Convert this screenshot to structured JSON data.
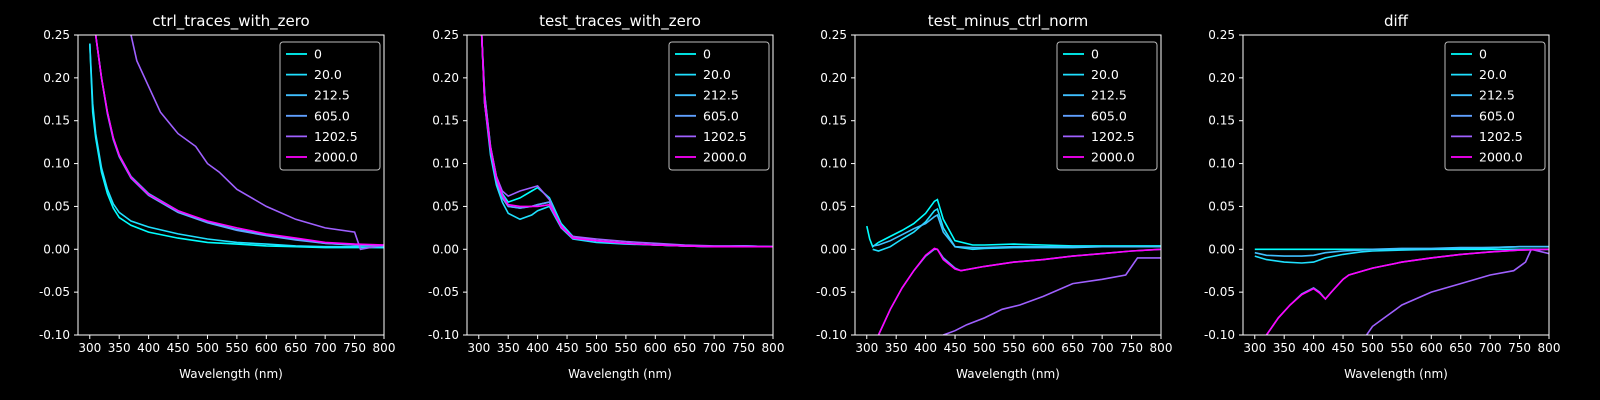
{
  "chart_data": [
    {
      "type": "line",
      "title": "ctrl_traces_with_zero",
      "xlabel": "Wavelength (nm)",
      "ylabel": "",
      "xlim": [
        280,
        800
      ],
      "ylim": [
        -0.1,
        0.25
      ],
      "xticks": [
        300,
        350,
        400,
        450,
        500,
        550,
        600,
        650,
        700,
        750,
        800
      ],
      "yticks": [
        -0.1,
        -0.05,
        0.0,
        0.05,
        0.1,
        0.15,
        0.2,
        0.25
      ],
      "grid": false,
      "legend_position": "top-right",
      "series": [
        {
          "name": "0",
          "color": "#00ffff",
          "x": [
            300,
            305,
            310,
            320,
            330,
            340,
            350,
            370,
            400,
            450,
            500,
            550,
            600,
            650,
            700,
            750,
            800
          ],
          "y": [
            0.24,
            0.16,
            0.13,
            0.09,
            0.065,
            0.048,
            0.037,
            0.028,
            0.02,
            0.013,
            0.008,
            0.006,
            0.004,
            0.003,
            0.002,
            0.002,
            0.002
          ]
        },
        {
          "name": "20.0",
          "color": "#1fe0ff",
          "x": [
            300,
            305,
            310,
            320,
            330,
            340,
            350,
            370,
            400,
            450,
            500,
            550,
            600,
            650,
            700,
            750,
            800
          ],
          "y": [
            0.24,
            0.17,
            0.135,
            0.095,
            0.07,
            0.053,
            0.043,
            0.033,
            0.026,
            0.018,
            0.012,
            0.008,
            0.006,
            0.004,
            0.003,
            0.003,
            0.002
          ]
        },
        {
          "name": "212.5",
          "color": "#40c0ff",
          "x": [
            310,
            320,
            330,
            340,
            350,
            370,
            400,
            450,
            500,
            550,
            600,
            650,
            700,
            750,
            800
          ],
          "y": [
            0.25,
            0.2,
            0.16,
            0.13,
            0.11,
            0.085,
            0.065,
            0.045,
            0.032,
            0.023,
            0.017,
            0.012,
            0.007,
            0.005,
            0.004
          ]
        },
        {
          "name": "605.0",
          "color": "#60a0ff",
          "x": [
            310,
            320,
            330,
            340,
            350,
            370,
            400,
            450,
            500,
            550,
            600,
            650,
            700,
            750,
            800
          ],
          "y": [
            0.25,
            0.2,
            0.158,
            0.128,
            0.108,
            0.083,
            0.063,
            0.043,
            0.031,
            0.022,
            0.016,
            0.011,
            0.007,
            0.005,
            0.004
          ]
        },
        {
          "name": "1202.5",
          "color": "#9f60ff",
          "x": [
            370,
            380,
            400,
            420,
            450,
            480,
            500,
            520,
            550,
            600,
            650,
            700,
            750,
            760,
            800
          ],
          "y": [
            0.25,
            0.22,
            0.19,
            0.16,
            0.135,
            0.12,
            0.1,
            0.09,
            0.07,
            0.05,
            0.035,
            0.025,
            0.02,
            0.0,
            0.005
          ]
        },
        {
          "name": "2000.0",
          "color": "#ff00ff",
          "x": [
            310,
            320,
            330,
            340,
            350,
            370,
            400,
            450,
            500,
            550,
            600,
            650,
            700,
            750,
            800
          ],
          "y": [
            0.25,
            0.2,
            0.16,
            0.13,
            0.11,
            0.084,
            0.064,
            0.045,
            0.033,
            0.025,
            0.018,
            0.013,
            0.008,
            0.006,
            0.005
          ]
        }
      ]
    },
    {
      "type": "line",
      "title": "test_traces_with_zero",
      "xlabel": "Wavelength (nm)",
      "ylabel": "",
      "xlim": [
        280,
        800
      ],
      "ylim": [
        -0.1,
        0.25
      ],
      "xticks": [
        300,
        350,
        400,
        450,
        500,
        550,
        600,
        650,
        700,
        750,
        800
      ],
      "yticks": [
        -0.1,
        -0.05,
        0.0,
        0.05,
        0.1,
        0.15,
        0.2,
        0.25
      ],
      "grid": false,
      "legend_position": "top-right",
      "series": [
        {
          "name": "0",
          "color": "#00ffff",
          "x": [
            305,
            310,
            320,
            330,
            340,
            350,
            370,
            390,
            400,
            420,
            440,
            460,
            500,
            550,
            600,
            650,
            700,
            750,
            800
          ],
          "y": [
            0.25,
            0.18,
            0.12,
            0.085,
            0.065,
            0.055,
            0.06,
            0.068,
            0.072,
            0.06,
            0.03,
            0.015,
            0.01,
            0.007,
            0.005,
            0.004,
            0.003,
            0.004,
            0.003
          ]
        },
        {
          "name": "20.0",
          "color": "#1fe0ff",
          "x": [
            305,
            310,
            320,
            330,
            340,
            350,
            370,
            390,
            400,
            420,
            440,
            460,
            500,
            550,
            600,
            650,
            700,
            750,
            800
          ],
          "y": [
            0.25,
            0.17,
            0.11,
            0.075,
            0.055,
            0.042,
            0.035,
            0.04,
            0.045,
            0.05,
            0.025,
            0.012,
            0.008,
            0.006,
            0.005,
            0.004,
            0.003,
            0.004,
            0.003
          ]
        },
        {
          "name": "212.5",
          "color": "#40c0ff",
          "x": [
            305,
            310,
            320,
            330,
            340,
            350,
            370,
            390,
            400,
            420,
            440,
            460,
            500,
            550,
            600,
            650,
            700,
            750,
            800
          ],
          "y": [
            0.25,
            0.17,
            0.115,
            0.08,
            0.06,
            0.05,
            0.048,
            0.05,
            0.052,
            0.055,
            0.028,
            0.014,
            0.01,
            0.007,
            0.005,
            0.004,
            0.003,
            0.003,
            0.003
          ]
        },
        {
          "name": "605.0",
          "color": "#60a0ff",
          "x": [
            305,
            310,
            320,
            330,
            340,
            350,
            370,
            390,
            400,
            420,
            440,
            460,
            500,
            550,
            600,
            650,
            700,
            750,
            800
          ],
          "y": [
            0.25,
            0.17,
            0.115,
            0.08,
            0.06,
            0.05,
            0.048,
            0.05,
            0.052,
            0.055,
            0.028,
            0.014,
            0.01,
            0.007,
            0.005,
            0.004,
            0.003,
            0.003,
            0.003
          ]
        },
        {
          "name": "1202.5",
          "color": "#9f60ff",
          "x": [
            305,
            310,
            320,
            330,
            340,
            350,
            370,
            390,
            400,
            420,
            440,
            460,
            500,
            550,
            600,
            650,
            700,
            750,
            800
          ],
          "y": [
            0.25,
            0.18,
            0.12,
            0.085,
            0.068,
            0.062,
            0.068,
            0.072,
            0.074,
            0.058,
            0.025,
            0.015,
            0.012,
            0.009,
            0.007,
            0.005,
            0.004,
            0.004,
            0.003
          ]
        },
        {
          "name": "2000.0",
          "color": "#ff00ff",
          "x": [
            305,
            310,
            320,
            330,
            340,
            350,
            370,
            390,
            400,
            420,
            440,
            460,
            500,
            550,
            600,
            650,
            700,
            750,
            800
          ],
          "y": [
            0.25,
            0.17,
            0.118,
            0.083,
            0.063,
            0.052,
            0.05,
            0.05,
            0.05,
            0.052,
            0.027,
            0.013,
            0.01,
            0.007,
            0.005,
            0.004,
            0.003,
            0.003,
            0.003
          ]
        }
      ]
    },
    {
      "type": "line",
      "title": "test_minus_ctrl_norm",
      "xlabel": "Wavelength (nm)",
      "ylabel": "",
      "xlim": [
        280,
        800
      ],
      "ylim": [
        -0.1,
        0.25
      ],
      "xticks": [
        300,
        350,
        400,
        450,
        500,
        550,
        600,
        650,
        700,
        750,
        800
      ],
      "yticks": [
        -0.1,
        -0.05,
        0.0,
        0.05,
        0.1,
        0.15,
        0.2,
        0.25
      ],
      "grid": false,
      "legend_position": "top-right",
      "series": [
        {
          "name": "0",
          "color": "#00ffff",
          "x": [
            300,
            305,
            310,
            320,
            340,
            360,
            380,
            400,
            415,
            420,
            430,
            450,
            480,
            500,
            550,
            600,
            650,
            700,
            750,
            800
          ],
          "y": [
            0.027,
            0.012,
            0.003,
            0.008,
            0.015,
            0.022,
            0.03,
            0.042,
            0.056,
            0.058,
            0.035,
            0.01,
            0.005,
            0.005,
            0.006,
            0.005,
            0.004,
            0.004,
            0.004,
            0.004
          ]
        },
        {
          "name": "20.0",
          "color": "#1fe0ff",
          "x": [
            310,
            320,
            340,
            360,
            380,
            400,
            415,
            420,
            430,
            450,
            480,
            500,
            550,
            600,
            650,
            700,
            750,
            800
          ],
          "y": [
            0.0,
            -0.002,
            0.003,
            0.012,
            0.02,
            0.032,
            0.045,
            0.047,
            0.025,
            0.003,
            0.0,
            0.001,
            0.002,
            0.002,
            0.002,
            0.003,
            0.003,
            0.003
          ]
        },
        {
          "name": "212.5",
          "color": "#40c0ff",
          "x": [
            310,
            320,
            340,
            360,
            380,
            400,
            415,
            420,
            430,
            450,
            480,
            500,
            550,
            600,
            650,
            700,
            750,
            800
          ],
          "y": [
            0.004,
            0.005,
            0.01,
            0.017,
            0.024,
            0.03,
            0.038,
            0.04,
            0.02,
            0.003,
            0.002,
            0.002,
            0.003,
            0.003,
            0.003,
            0.003,
            0.003,
            0.003
          ]
        },
        {
          "name": "605.0",
          "color": "#60a0ff",
          "x": [
            320,
            340,
            360,
            380,
            400,
            415,
            420,
            430,
            450,
            460,
            500,
            550,
            600,
            650,
            700,
            750,
            800
          ],
          "y": [
            -0.1,
            -0.07,
            -0.045,
            -0.025,
            -0.008,
            0.0,
            0.0,
            -0.01,
            -0.022,
            -0.025,
            -0.02,
            -0.015,
            -0.012,
            -0.008,
            -0.005,
            -0.002,
            0.0
          ]
        },
        {
          "name": "1202.5",
          "color": "#9f60ff",
          "x": [
            430,
            450,
            470,
            500,
            530,
            560,
            600,
            650,
            700,
            740,
            760,
            800
          ],
          "y": [
            -0.1,
            -0.095,
            -0.088,
            -0.08,
            -0.07,
            -0.065,
            -0.055,
            -0.04,
            -0.035,
            -0.03,
            -0.01,
            -0.01
          ]
        },
        {
          "name": "2000.0",
          "color": "#ff00ff",
          "x": [
            320,
            340,
            360,
            380,
            400,
            415,
            420,
            430,
            450,
            460,
            500,
            550,
            600,
            650,
            700,
            750,
            800
          ],
          "y": [
            -0.1,
            -0.07,
            -0.045,
            -0.025,
            -0.007,
            0.001,
            0.0,
            -0.012,
            -0.023,
            -0.025,
            -0.02,
            -0.015,
            -0.012,
            -0.008,
            -0.005,
            -0.002,
            0.0
          ]
        }
      ]
    },
    {
      "type": "line",
      "title": "diff",
      "xlabel": "Wavelength (nm)",
      "ylabel": "",
      "xlim": [
        280,
        800
      ],
      "ylim": [
        -0.1,
        0.25
      ],
      "xticks": [
        300,
        350,
        400,
        450,
        500,
        550,
        600,
        650,
        700,
        750,
        800
      ],
      "yticks": [
        -0.1,
        -0.05,
        0.0,
        0.05,
        0.1,
        0.15,
        0.2,
        0.25
      ],
      "grid": false,
      "legend_position": "top-right",
      "series": [
        {
          "name": "0",
          "color": "#00ffff",
          "x": [
            300,
            400,
            500,
            600,
            700,
            800
          ],
          "y": [
            0.0,
            0.0,
            0.0,
            0.0,
            0.0,
            0.0
          ]
        },
        {
          "name": "20.0",
          "color": "#1fe0ff",
          "x": [
            300,
            320,
            350,
            380,
            400,
            420,
            450,
            480,
            500,
            550,
            600,
            650,
            700,
            750,
            800
          ],
          "y": [
            -0.008,
            -0.012,
            -0.015,
            -0.016,
            -0.015,
            -0.01,
            -0.006,
            -0.003,
            -0.002,
            -0.001,
            0.0,
            0.001,
            0.002,
            0.003,
            0.003
          ]
        },
        {
          "name": "212.5",
          "color": "#40c0ff",
          "x": [
            300,
            320,
            350,
            380,
            400,
            420,
            450,
            480,
            500,
            550,
            600,
            650,
            700,
            750,
            800
          ],
          "y": [
            -0.004,
            -0.007,
            -0.008,
            -0.008,
            -0.007,
            -0.004,
            -0.002,
            -0.001,
            0.0,
            0.001,
            0.001,
            0.002,
            0.002,
            0.003,
            0.003
          ]
        },
        {
          "name": "605.0",
          "color": "#60a0ff",
          "x": [
            320,
            340,
            360,
            380,
            400,
            410,
            420,
            430,
            450,
            460,
            500,
            550,
            600,
            650,
            700,
            750,
            800
          ],
          "y": [
            -0.1,
            -0.08,
            -0.065,
            -0.052,
            -0.045,
            -0.05,
            -0.058,
            -0.05,
            -0.035,
            -0.03,
            -0.022,
            -0.015,
            -0.01,
            -0.006,
            -0.003,
            -0.001,
            0.0
          ]
        },
        {
          "name": "1202.5",
          "color": "#9f60ff",
          "x": [
            490,
            500,
            520,
            550,
            600,
            650,
            700,
            740,
            760,
            770,
            800
          ],
          "y": [
            -0.1,
            -0.09,
            -0.08,
            -0.065,
            -0.05,
            -0.04,
            -0.03,
            -0.025,
            -0.015,
            0.0,
            -0.005
          ]
        },
        {
          "name": "2000.0",
          "color": "#ff00ff",
          "x": [
            320,
            340,
            360,
            380,
            400,
            410,
            420,
            430,
            450,
            460,
            500,
            550,
            600,
            650,
            700,
            750,
            800
          ],
          "y": [
            -0.1,
            -0.08,
            -0.065,
            -0.053,
            -0.046,
            -0.051,
            -0.058,
            -0.05,
            -0.035,
            -0.03,
            -0.022,
            -0.015,
            -0.01,
            -0.006,
            -0.003,
            -0.001,
            0.0
          ]
        }
      ]
    }
  ]
}
